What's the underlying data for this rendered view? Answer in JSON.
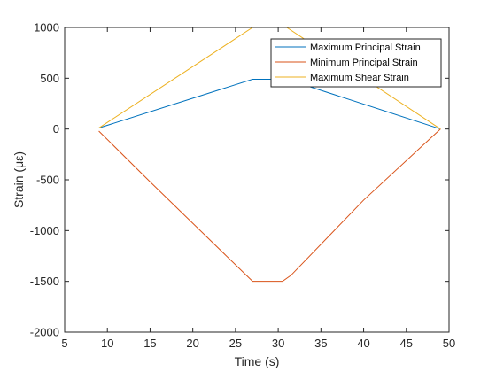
{
  "chart_data": {
    "type": "line",
    "xlabel": "Time (s)",
    "ylabel": "Strain (με)",
    "xlim": [
      5,
      50
    ],
    "ylim": [
      -2000,
      1000
    ],
    "xticks": [
      "5",
      "10",
      "15",
      "20",
      "25",
      "30",
      "35",
      "40",
      "45",
      "50"
    ],
    "yticks": [
      "1000",
      "500",
      "0",
      "-500",
      "-1000",
      "-1500",
      "-2000"
    ],
    "grid": false,
    "legend_position": "top-right",
    "series": [
      {
        "name": "Maximum Principal Strain",
        "color": "#0072BD",
        "x": [
          9,
          27,
          31,
          49
        ],
        "y": [
          10,
          490,
          490,
          0
        ]
      },
      {
        "name": "Minimum Principal Strain",
        "color": "#D95319",
        "x": [
          9,
          15,
          27,
          30.5,
          31.5,
          40,
          49
        ],
        "y": [
          -20,
          -520,
          -1500,
          -1500,
          -1440,
          -700,
          0
        ]
      },
      {
        "name": "Maximum Shear Strain",
        "color": "#EDB120",
        "x": [
          9,
          27,
          31,
          49
        ],
        "y": [
          10,
          1000,
          1000,
          0
        ]
      }
    ]
  }
}
